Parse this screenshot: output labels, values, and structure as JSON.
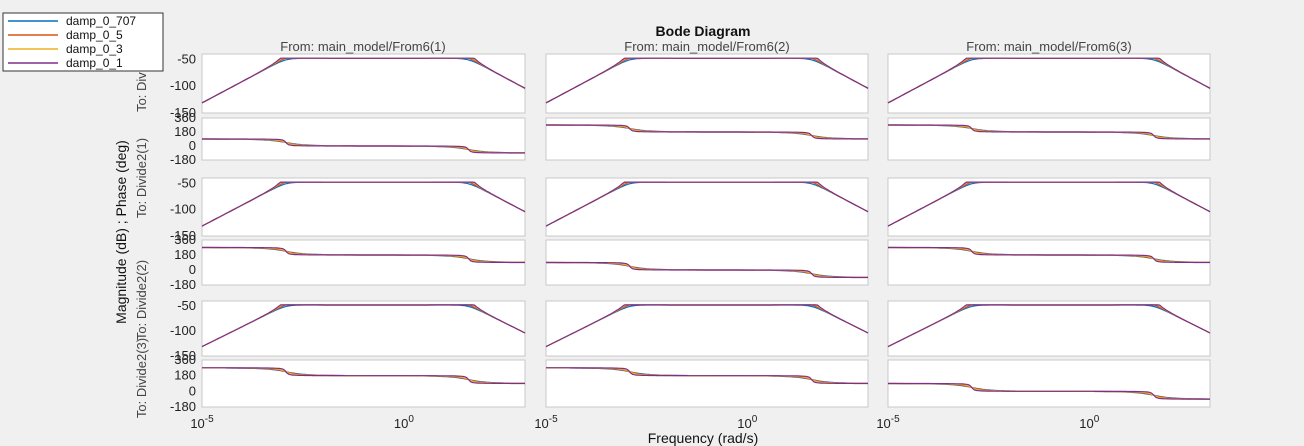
{
  "chart_data": {
    "type": "line",
    "title": "Bode Diagram",
    "xlabel": "Frequency  (rad/s)",
    "ylabel": "Magnitude (dB) ; Phase (deg)",
    "x_scale": "log",
    "xlim": [
      1e-05,
      1000
    ],
    "x_tick_labels": [
      {
        "base": "10",
        "exp": "-5"
      },
      {
        "base": "10",
        "exp": "0"
      }
    ],
    "column_titles": [
      "From: main_model/From6(1)",
      "From: main_model/From6(2)",
      "From: main_model/From6(3)"
    ],
    "row_labels": [
      "To: Divide",
      "To: Divide2(1)",
      "To: Divide2(2)",
      "To: Divide2(3)"
    ],
    "row_labels_display": [
      "To: Divid",
      "To: Divide2(1)",
      "To: Divide2(2)",
      "To: Divide2(3)"
    ],
    "magnitude": {
      "ylim": [
        -150,
        -40
      ],
      "yticks": [
        -50,
        -100,
        -150
      ],
      "ytick_labels": [
        "-50",
        "-100",
        "-150"
      ]
    },
    "phase": {
      "ylim": [
        -180,
        360
      ],
      "yticks": [
        360,
        180,
        0,
        -180
      ],
      "ytick_labels": [
        "360",
        "180",
        "0",
        "-180"
      ]
    },
    "grid": false,
    "legend_position": "top-left",
    "series": [
      {
        "name": "damp_0_707",
        "color": "#0072bd",
        "zeta": 0.707
      },
      {
        "name": "damp_0_5",
        "color": "#d95319",
        "zeta": 0.5
      },
      {
        "name": "damp_0_3",
        "color": "#edb120",
        "zeta": 0.3
      },
      {
        "name": "damp_0_1",
        "color": "#7e2f8e",
        "zeta": 0.1
      }
    ],
    "phase_start_by_panel": [
      [
        90,
        270,
        270
      ],
      [
        270,
        90,
        270
      ],
      [
        270,
        270,
        90
      ]
    ]
  }
}
